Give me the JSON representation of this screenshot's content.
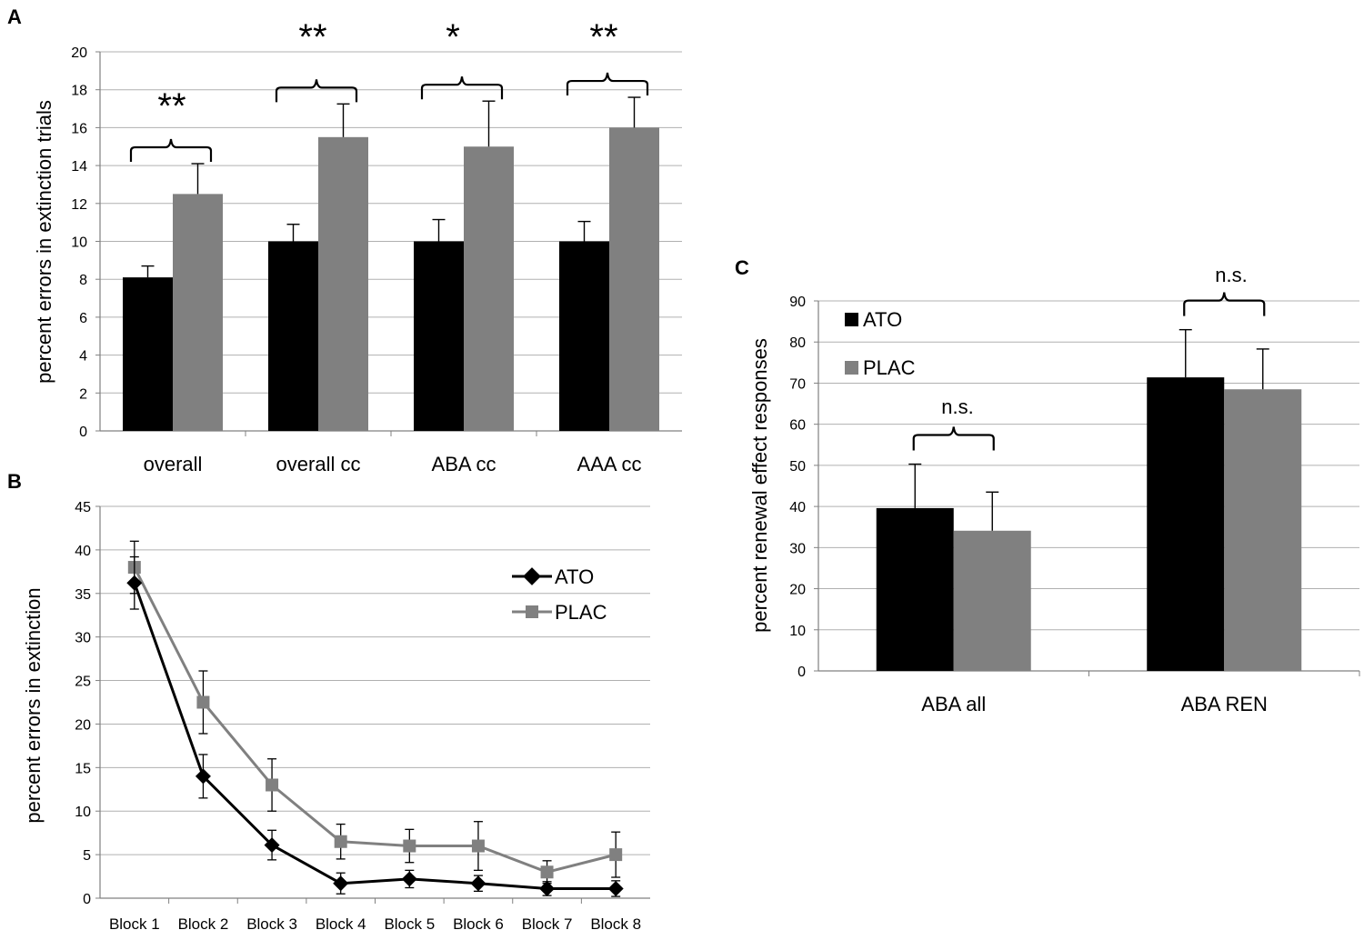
{
  "colors": {
    "ato": "#000000",
    "plac": "#808080",
    "grid": "#b0b0b0",
    "axis": "#808080"
  },
  "chart_data": [
    {
      "panel": "A",
      "type": "bar",
      "ylabel": "percent errors in extinction trials",
      "ylim": [
        0,
        20
      ],
      "yticks": [
        0,
        2,
        4,
        6,
        8,
        10,
        12,
        14,
        16,
        18,
        20
      ],
      "categories": [
        "overall",
        "overall cc",
        "ABA cc",
        "AAA cc"
      ],
      "series": [
        {
          "name": "ATO",
          "values": [
            8.1,
            10.0,
            10.0,
            10.0
          ],
          "errors": [
            0.6,
            0.9,
            1.15,
            1.05
          ]
        },
        {
          "name": "PLAC",
          "values": [
            12.5,
            15.5,
            15.0,
            16.0
          ],
          "errors": [
            1.6,
            1.75,
            2.4,
            1.6
          ]
        }
      ],
      "annotations": [
        "**",
        "**",
        "*",
        "**"
      ]
    },
    {
      "panel": "B",
      "type": "line",
      "ylabel": "percent errors in extinction",
      "ylim": [
        0,
        45
      ],
      "yticks": [
        0,
        5,
        10,
        15,
        20,
        25,
        30,
        35,
        40,
        45
      ],
      "categories": [
        "Block 1",
        "Block 2",
        "Block 3",
        "Block 4",
        "Block 5",
        "Block 6",
        "Block 7",
        "Block 8"
      ],
      "series": [
        {
          "name": "ATO",
          "values": [
            36.2,
            14.0,
            6.1,
            1.7,
            2.2,
            1.7,
            1.1,
            1.1
          ],
          "errors": [
            3.0,
            2.5,
            1.7,
            1.2,
            1.0,
            0.9,
            0.8,
            0.9
          ]
        },
        {
          "name": "PLAC",
          "values": [
            38.0,
            22.5,
            13.0,
            6.5,
            6.0,
            6.0,
            3.0,
            5.0
          ],
          "errors": [
            3.0,
            3.6,
            3.0,
            2.0,
            1.9,
            2.8,
            1.3,
            2.6
          ]
        }
      ],
      "legend": [
        "ATO",
        "PLAC"
      ]
    },
    {
      "panel": "C",
      "type": "bar",
      "ylabel": "percent renewal effect responses",
      "ylim": [
        0,
        90
      ],
      "yticks": [
        0,
        10,
        20,
        30,
        40,
        50,
        60,
        70,
        80,
        90
      ],
      "categories": [
        "ABA all",
        "ABA REN"
      ],
      "series": [
        {
          "name": "ATO",
          "values": [
            39.6,
            71.4
          ],
          "errors": [
            10.7,
            11.6
          ]
        },
        {
          "name": "PLAC",
          "values": [
            34.1,
            68.5
          ],
          "errors": [
            9.4,
            9.8
          ]
        }
      ],
      "annotations": [
        "n.s.",
        "n.s."
      ],
      "legend": [
        "ATO",
        "PLAC"
      ]
    }
  ]
}
